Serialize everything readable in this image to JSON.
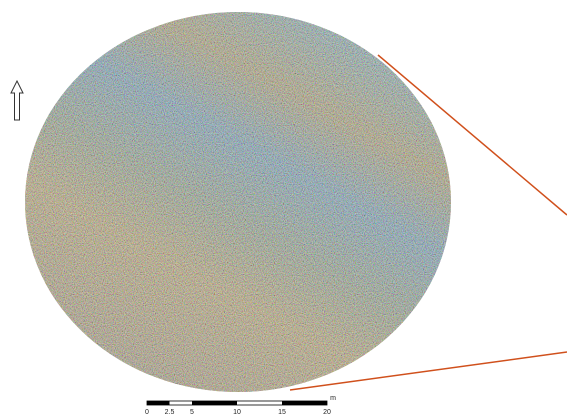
{
  "scale_bar": {
    "labels": [
      "0",
      "2.5",
      "5",
      "10",
      "15",
      "20"
    ],
    "unit": "m"
  }
}
